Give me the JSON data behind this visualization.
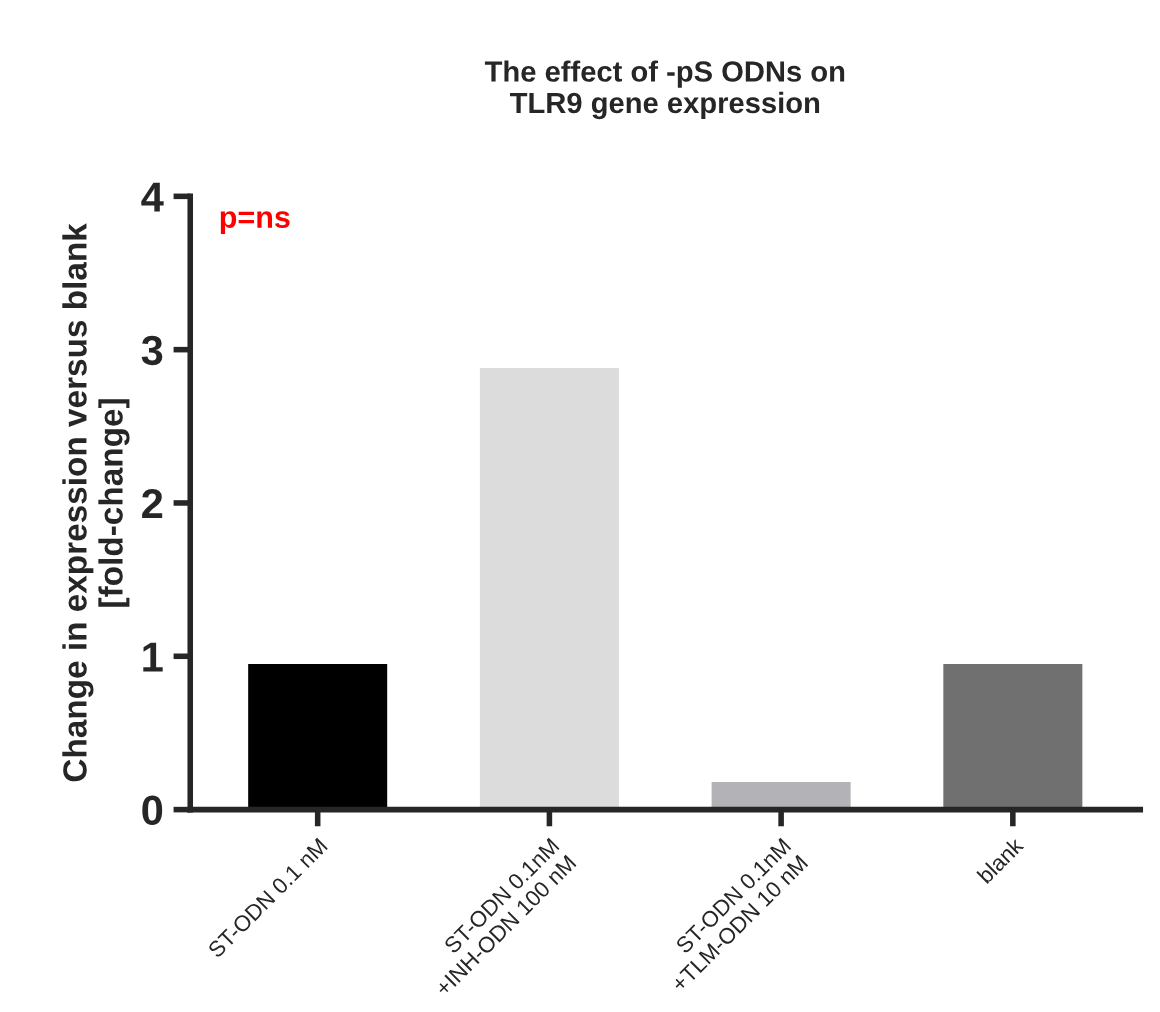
{
  "chart_data": {
    "type": "bar",
    "title": "The effect of -pS ODNs on\nTLR9 gene expression",
    "ylabel": "Change in expression versus blank\n[fold-change]",
    "categories": [
      "ST-ODN 0.1 nM",
      "ST-ODN 0.1nM\n+INH-ODN 100 nM",
      "ST-ODN 0.1nM\n+TLM-ODN 10 nM",
      "blank"
    ],
    "values": [
      0.95,
      2.88,
      0.18,
      0.95
    ],
    "colors": [
      "#000000",
      "#dcdcdc",
      "#b3b3b7",
      "#707070"
    ],
    "ylim": [
      0,
      4
    ],
    "yticks": [
      0,
      1,
      2,
      3,
      4
    ],
    "grid": false,
    "legend": false,
    "annotations": [
      "p=ns"
    ]
  }
}
